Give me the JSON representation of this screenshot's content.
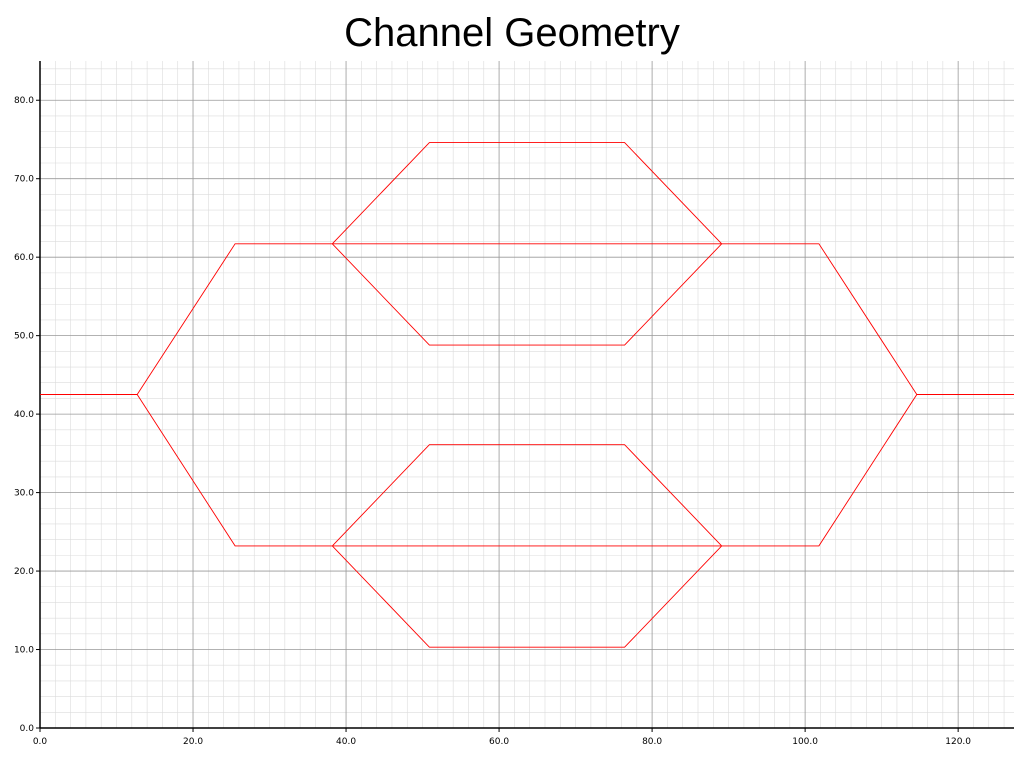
{
  "chart_data": {
    "type": "line",
    "title": "Channel Geometry",
    "xlabel": "",
    "ylabel": "",
    "xlim": [
      0,
      127.3
    ],
    "ylim": [
      0,
      85
    ],
    "grid": true,
    "x_ticks": [
      "0.0",
      "20.0",
      "40.0",
      "60.0",
      "80.0",
      "100.0",
      "120.0"
    ],
    "y_ticks": [
      "0.0",
      "10.0",
      "20.0",
      "30.0",
      "40.0",
      "50.0",
      "60.0",
      "70.0",
      "80.0"
    ],
    "x_tick_values": [
      0,
      20,
      40,
      60,
      80,
      100,
      120
    ],
    "y_tick_values": [
      0,
      10,
      20,
      30,
      40,
      50,
      60,
      70,
      80
    ],
    "line_color": "#ff0000",
    "segments": [
      {
        "x": [
          0,
          12.7
        ],
        "y": [
          42.5,
          42.5
        ]
      },
      {
        "x": [
          12.7,
          25.5,
          38.2
        ],
        "y": [
          42.5,
          61.7,
          61.7
        ]
      },
      {
        "x": [
          12.7,
          25.5,
          38.2
        ],
        "y": [
          42.5,
          23.2,
          23.2
        ]
      },
      {
        "x": [
          38.2,
          89.1
        ],
        "y": [
          61.7,
          61.7
        ]
      },
      {
        "x": [
          38.2,
          50.9,
          76.4,
          89.1
        ],
        "y": [
          61.7,
          74.6,
          74.6,
          61.7
        ]
      },
      {
        "x": [
          38.2,
          50.9,
          76.4,
          89.1
        ],
        "y": [
          61.7,
          48.8,
          48.8,
          61.7
        ]
      },
      {
        "x": [
          38.2,
          89.1
        ],
        "y": [
          23.2,
          23.2
        ]
      },
      {
        "x": [
          38.2,
          50.9,
          76.4,
          89.1
        ],
        "y": [
          23.2,
          36.1,
          36.1,
          23.2
        ]
      },
      {
        "x": [
          38.2,
          50.9,
          76.4,
          89.1
        ],
        "y": [
          23.2,
          10.3,
          10.3,
          23.2
        ]
      },
      {
        "x": [
          89.1,
          101.8,
          114.6
        ],
        "y": [
          61.7,
          61.7,
          42.5
        ]
      },
      {
        "x": [
          89.1,
          101.8,
          114.6
        ],
        "y": [
          23.2,
          23.2,
          42.5
        ]
      },
      {
        "x": [
          114.6,
          127.3
        ],
        "y": [
          42.5,
          42.5
        ]
      }
    ]
  }
}
